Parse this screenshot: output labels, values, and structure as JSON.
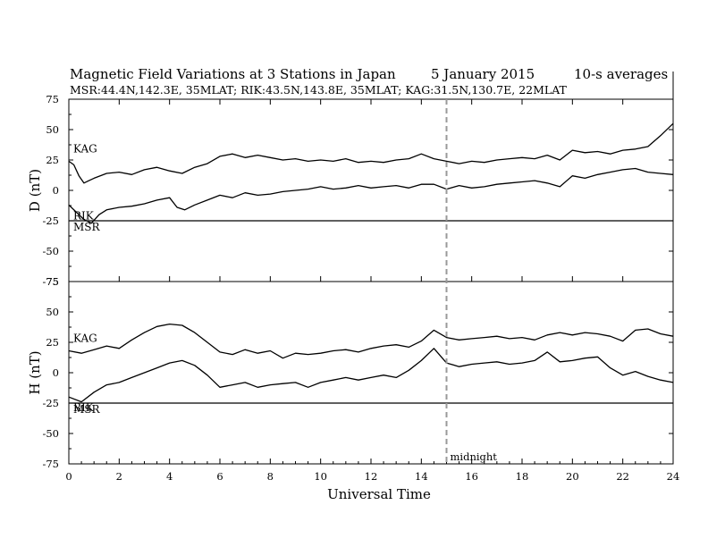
{
  "chart_data": {
    "type": "line",
    "title": "Magnetic Field Variations at 3 Stations in Japan",
    "date": "5   January 2015",
    "averaging": "10-s averages",
    "subtitle": "MSR:44.4N,142.3E, 35MLAT;  RIK:43.5N,143.8E, 35MLAT;  KAG:31.5N,130.7E, 22MLAT",
    "xlabel": "Universal Time",
    "xlim": [
      0,
      24
    ],
    "xticks": [
      "0",
      "2",
      "4",
      "6",
      "8",
      "10",
      "12",
      "14",
      "16",
      "18",
      "20",
      "22",
      "24"
    ],
    "annotation": {
      "label": "midnight",
      "x": 15,
      "style": "dashed"
    },
    "grid": false,
    "panels": [
      {
        "ylabel": "D (nT)",
        "ylim": [
          -75,
          75
        ],
        "yticks": [
          "75",
          "50",
          "25",
          "0",
          "-25",
          "-50",
          "-75"
        ],
        "series": [
          {
            "name": "KAG",
            "x": [
              0,
              0.2,
              0.4,
              0.6,
              0.8,
              1,
              1.5,
              2,
              2.5,
              3,
              3.5,
              4,
              4.5,
              5,
              5.5,
              6,
              6.5,
              7,
              7.5,
              8,
              8.5,
              9,
              9.5,
              10,
              10.5,
              11,
              11.5,
              12,
              12.5,
              13,
              13.5,
              14,
              14.5,
              15,
              15.5,
              16,
              16.5,
              17,
              17.5,
              18,
              18.5,
              19,
              19.5,
              20,
              20.5,
              21,
              21.5,
              22,
              22.5,
              23,
              23.5,
              24
            ],
            "y": [
              24,
              21,
              12,
              6,
              8,
              10,
              14,
              15,
              13,
              17,
              19,
              16,
              14,
              19,
              22,
              28,
              30,
              27,
              29,
              27,
              25,
              26,
              24,
              25,
              24,
              26,
              23,
              24,
              23,
              25,
              26,
              30,
              26,
              24,
              22,
              24,
              23,
              25,
              26,
              27,
              26,
              29,
              25,
              33,
              31,
              32,
              30,
              33,
              34,
              36,
              45,
              55
            ]
          },
          {
            "name": "RIK",
            "x": [
              0,
              0.3,
              0.6,
              0.9,
              1.2,
              1.5,
              2,
              2.5,
              3,
              3.5,
              4,
              4.3,
              4.6,
              5,
              5.5,
              6,
              6.5,
              7,
              7.5,
              8,
              8.5,
              9,
              9.5,
              10,
              10.5,
              11,
              11.5,
              12,
              12.5,
              13,
              13.5,
              14,
              14.5,
              15,
              15.5,
              16,
              16.5,
              17,
              17.5,
              18,
              18.5,
              19,
              19.5,
              20,
              20.5,
              21,
              21.5,
              22,
              22.5,
              23,
              23.5,
              24
            ],
            "y": [
              -12,
              -18,
              -24,
              -27,
              -20,
              -16,
              -14,
              -13,
              -11,
              -8,
              -6,
              -14,
              -16,
              -12,
              -8,
              -4,
              -6,
              -2,
              -4,
              -3,
              -1,
              0,
              1,
              3,
              1,
              2,
              4,
              2,
              3,
              4,
              2,
              5,
              5,
              1,
              4,
              2,
              3,
              5,
              6,
              7,
              8,
              6,
              3,
              12,
              10,
              13,
              15,
              17,
              18,
              15,
              14,
              13
            ]
          },
          {
            "name": "MSR",
            "x": [
              0,
              24
            ],
            "y": [
              -25,
              -25
            ]
          }
        ]
      },
      {
        "ylabel": "H (nT)",
        "ylim": [
          -75,
          75
        ],
        "yticks": [
          "75",
          "50",
          "25",
          "0",
          "-25",
          "-50",
          "-75"
        ],
        "series": [
          {
            "name": "KAG",
            "x": [
              0,
              0.5,
              1,
              1.5,
              2,
              2.5,
              3,
              3.5,
              4,
              4.5,
              5,
              5.5,
              6,
              6.5,
              7,
              7.5,
              8,
              8.5,
              9,
              9.5,
              10,
              10.5,
              11,
              11.5,
              12,
              12.5,
              13,
              13.5,
              14,
              14.5,
              15,
              15.5,
              16,
              16.5,
              17,
              17.5,
              18,
              18.5,
              19,
              19.5,
              20,
              20.5,
              21,
              21.5,
              22,
              22.5,
              23,
              23.5,
              24
            ],
            "y": [
              18,
              16,
              19,
              22,
              20,
              27,
              33,
              38,
              40,
              39,
              33,
              25,
              17,
              15,
              19,
              16,
              18,
              12,
              16,
              15,
              16,
              18,
              19,
              17,
              20,
              22,
              23,
              21,
              26,
              35,
              29,
              27,
              28,
              29,
              30,
              28,
              29,
              27,
              31,
              33,
              31,
              33,
              32,
              30,
              26,
              35,
              36,
              32,
              30
            ]
          },
          {
            "name": "RIK",
            "x": [
              0,
              0.5,
              1,
              1.5,
              2,
              2.5,
              3,
              3.5,
              4,
              4.5,
              5,
              5.5,
              6,
              6.5,
              7,
              7.5,
              8,
              8.5,
              9,
              9.5,
              10,
              10.5,
              11,
              11.5,
              12,
              12.5,
              13,
              13.5,
              14,
              14.5,
              15,
              15.5,
              16,
              16.5,
              17,
              17.5,
              18,
              18.5,
              19,
              19.5,
              20,
              20.5,
              21,
              21.5,
              22,
              22.5,
              23,
              23.5,
              24
            ],
            "y": [
              -20,
              -24,
              -16,
              -10,
              -8,
              -4,
              0,
              4,
              8,
              10,
              6,
              -2,
              -12,
              -10,
              -8,
              -12,
              -10,
              -9,
              -8,
              -12,
              -8,
              -6,
              -4,
              -6,
              -4,
              -2,
              -4,
              2,
              10,
              20,
              8,
              5,
              7,
              8,
              9,
              7,
              8,
              10,
              17,
              9,
              10,
              12,
              13,
              4,
              -2,
              1,
              -3,
              -6,
              -8
            ]
          },
          {
            "name": "MSR",
            "x": [
              0,
              24
            ],
            "y": [
              -25,
              -25
            ]
          }
        ]
      }
    ]
  }
}
